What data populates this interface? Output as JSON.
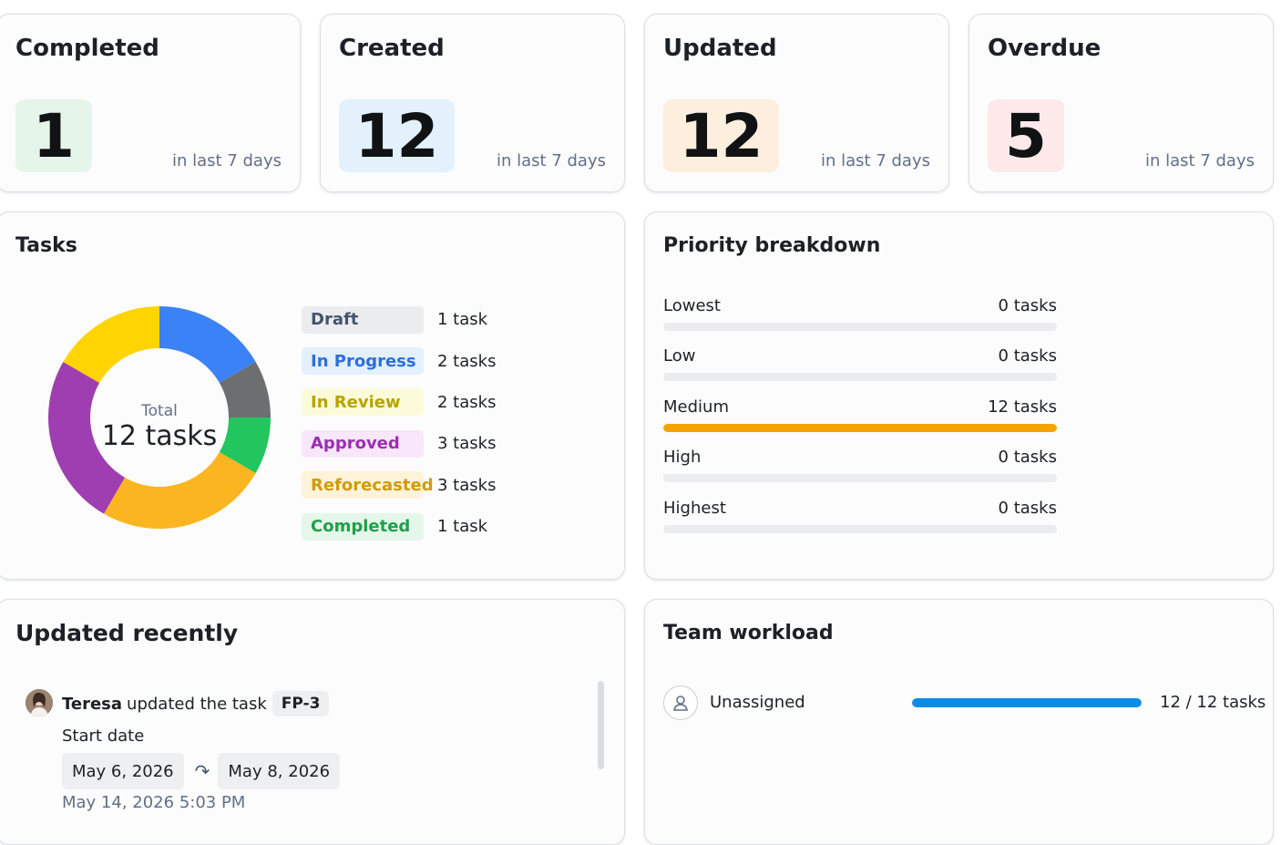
{
  "stats": [
    {
      "title": "Completed",
      "value": "1",
      "subtitle": "in last 7 days",
      "bg": "#e6f5ea"
    },
    {
      "title": "Created",
      "value": "12",
      "subtitle": "in last 7 days",
      "bg": "#e3f1fd"
    },
    {
      "title": "Updated",
      "value": "12",
      "subtitle": "in last 7 days",
      "bg": "#fdeedd"
    },
    {
      "title": "Overdue",
      "value": "5",
      "subtitle": "in last 7 days",
      "bg": "#fde8ea"
    }
  ],
  "tasks": {
    "title": "Tasks",
    "total_label": "Total",
    "total_value": "12 tasks",
    "statuses": [
      {
        "label": "Draft",
        "count": "1 task",
        "value": 1,
        "color": "#6d6e6f",
        "lozenge_bg": "#ebecee",
        "lozenge_fg": "#44546f"
      },
      {
        "label": "In Progress",
        "count": "2 tasks",
        "value": 2,
        "color": "#3b82f6",
        "lozenge_bg": "#e3f0fe",
        "lozenge_fg": "#2e6fd8"
      },
      {
        "label": "In Review",
        "count": "2 tasks",
        "value": 2,
        "color": "#ffd400",
        "lozenge_bg": "#fcfbd9",
        "lozenge_fg": "#b8a300"
      },
      {
        "label": "Approved",
        "count": "3 tasks",
        "value": 3,
        "color": "#9f3eb0",
        "lozenge_bg": "#f8e6fb",
        "lozenge_fg": "#9a2fb0"
      },
      {
        "label": "Reforecasted",
        "count": "3 tasks",
        "value": 3,
        "color": "#fbb520",
        "lozenge_bg": "#fdf3d8",
        "lozenge_fg": "#d29b08"
      },
      {
        "label": "Completed",
        "count": "1 task",
        "value": 1,
        "color": "#22c55e",
        "lozenge_bg": "#e4f7ea",
        "lozenge_fg": "#1f9f4a"
      }
    ]
  },
  "chart_data": {
    "type": "pie",
    "categories": [
      "In Progress",
      "Draft",
      "Completed",
      "Reforecasted",
      "Approved",
      "In Review"
    ],
    "values": [
      2,
      1,
      1,
      3,
      3,
      2
    ],
    "colors": [
      "#3b82f6",
      "#6d6e6f",
      "#22c55e",
      "#fbb520",
      "#9f3eb0",
      "#ffd400"
    ],
    "center_label": "Total",
    "center_value": "12 tasks"
  },
  "priority": {
    "title": "Priority breakdown",
    "total": 12,
    "rows": [
      {
        "label": "Lowest",
        "count": "0 tasks",
        "value": 0,
        "color": "#f5a300"
      },
      {
        "label": "Low",
        "count": "0 tasks",
        "value": 0,
        "color": "#f5a300"
      },
      {
        "label": "Medium",
        "count": "12 tasks",
        "value": 12,
        "color": "#f5a300"
      },
      {
        "label": "High",
        "count": "0 tasks",
        "value": 0,
        "color": "#f5a300"
      },
      {
        "label": "Highest",
        "count": "0 tasks",
        "value": 0,
        "color": "#f5a300"
      }
    ]
  },
  "recent": {
    "title": "Updated recently",
    "user": "Teresa",
    "action": "updated the task",
    "task_key": "FP-3",
    "field": "Start date",
    "from": "May 6, 2026",
    "arrow": "↷",
    "to": "May 8, 2026",
    "timestamp": "May 14, 2026 5:03 PM"
  },
  "workload": {
    "title": "Team workload",
    "assignee": "Unassigned",
    "count": "12 / 12 tasks",
    "fraction": 1.0,
    "bar_color": "#0c8ce9"
  }
}
